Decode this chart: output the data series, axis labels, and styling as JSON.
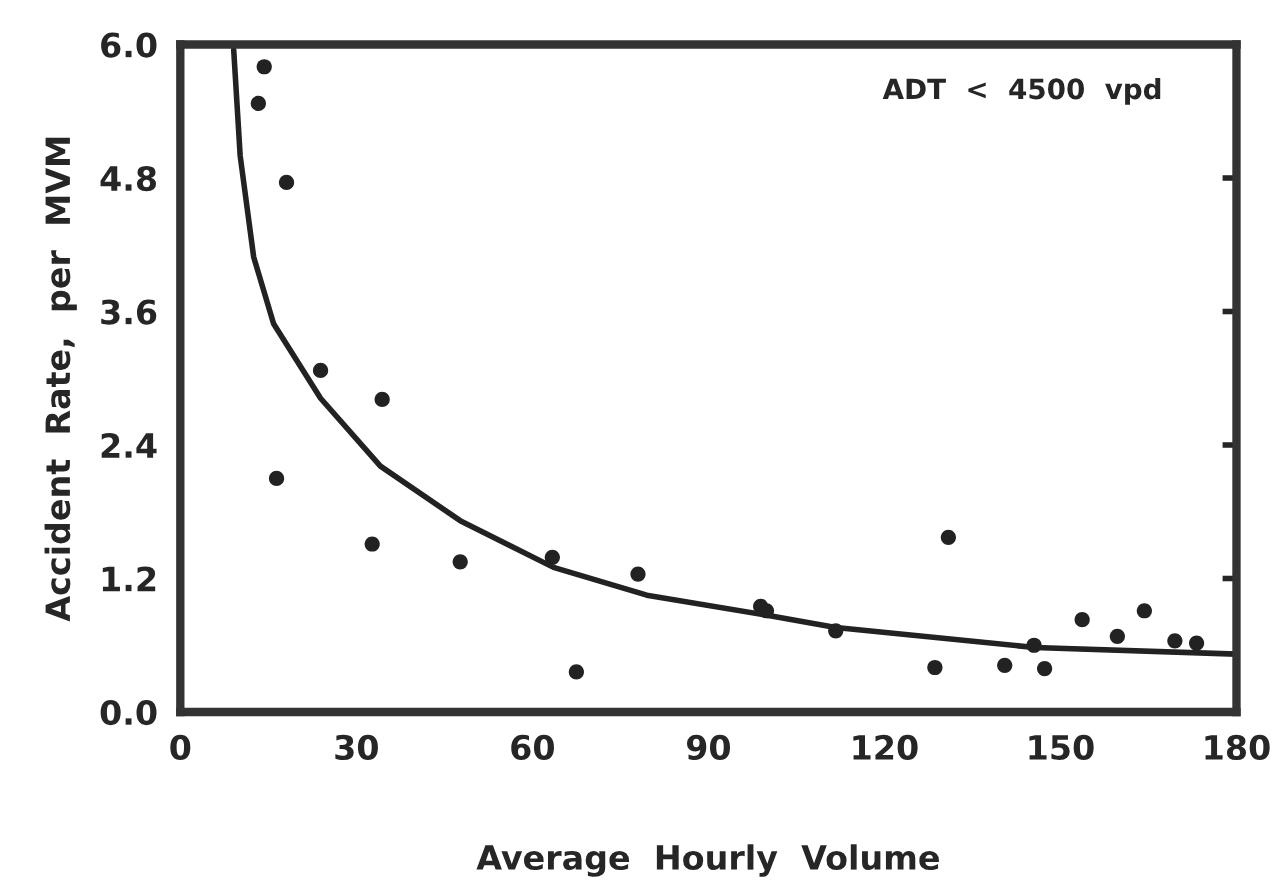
{
  "chart_data": {
    "type": "scatter",
    "xlabel": "Average  Hourly  Volume",
    "ylabel": "Accident  Rate,  per  MVM",
    "annotations": [
      "ADT  <  4500  vpd"
    ],
    "xlim": [
      0,
      180
    ],
    "ylim": [
      0,
      6
    ],
    "xticks": [
      0,
      30,
      60,
      90,
      120,
      150,
      180
    ],
    "yticks": [
      {
        "value": 0,
        "label": "0.0"
      },
      {
        "value": 1.2,
        "label": "1.2"
      },
      {
        "value": 2.4,
        "label": "2.4"
      },
      {
        "value": 3.6,
        "label": "3.6"
      },
      {
        "value": 4.8,
        "label": "4.8"
      },
      {
        "value": 6,
        "label": "6.0"
      }
    ],
    "grid": false,
    "marker": "circle",
    "series": [
      {
        "color": "#222222",
        "x": [
          14.3,
          13.3,
          18.1,
          16.4,
          23.9,
          34.4,
          32.7,
          47.7,
          63.4,
          67.5,
          78,
          98.9,
          99.9,
          111.7,
          130.9,
          128.6,
          140.5,
          147.3,
          145.5,
          153.7,
          159.7,
          164.3,
          169.5,
          173.2
        ],
        "values": [
          5.8,
          5.47,
          4.76,
          2.1,
          3.07,
          2.81,
          1.51,
          1.35,
          1.39,
          0.36,
          1.24,
          0.95,
          0.91,
          0.73,
          1.57,
          0.4,
          0.42,
          0.39,
          0.6,
          0.83,
          0.68,
          0.91,
          0.64,
          0.62
        ]
      },
      {
        "type": "line",
        "color": "#222222",
        "marker": "none",
        "line_style": "solid",
        "x": [
          9.1,
          10.2,
          12.5,
          15.9,
          23.9,
          34.1,
          47.7,
          63.6,
          79.5,
          100,
          111.7,
          145.6,
          180
        ],
        "values": [
          5.95,
          5.0,
          4.09,
          3.49,
          2.82,
          2.21,
          1.72,
          1.3,
          1.05,
          0.87,
          0.76,
          0.58,
          0.52
        ]
      }
    ]
  }
}
